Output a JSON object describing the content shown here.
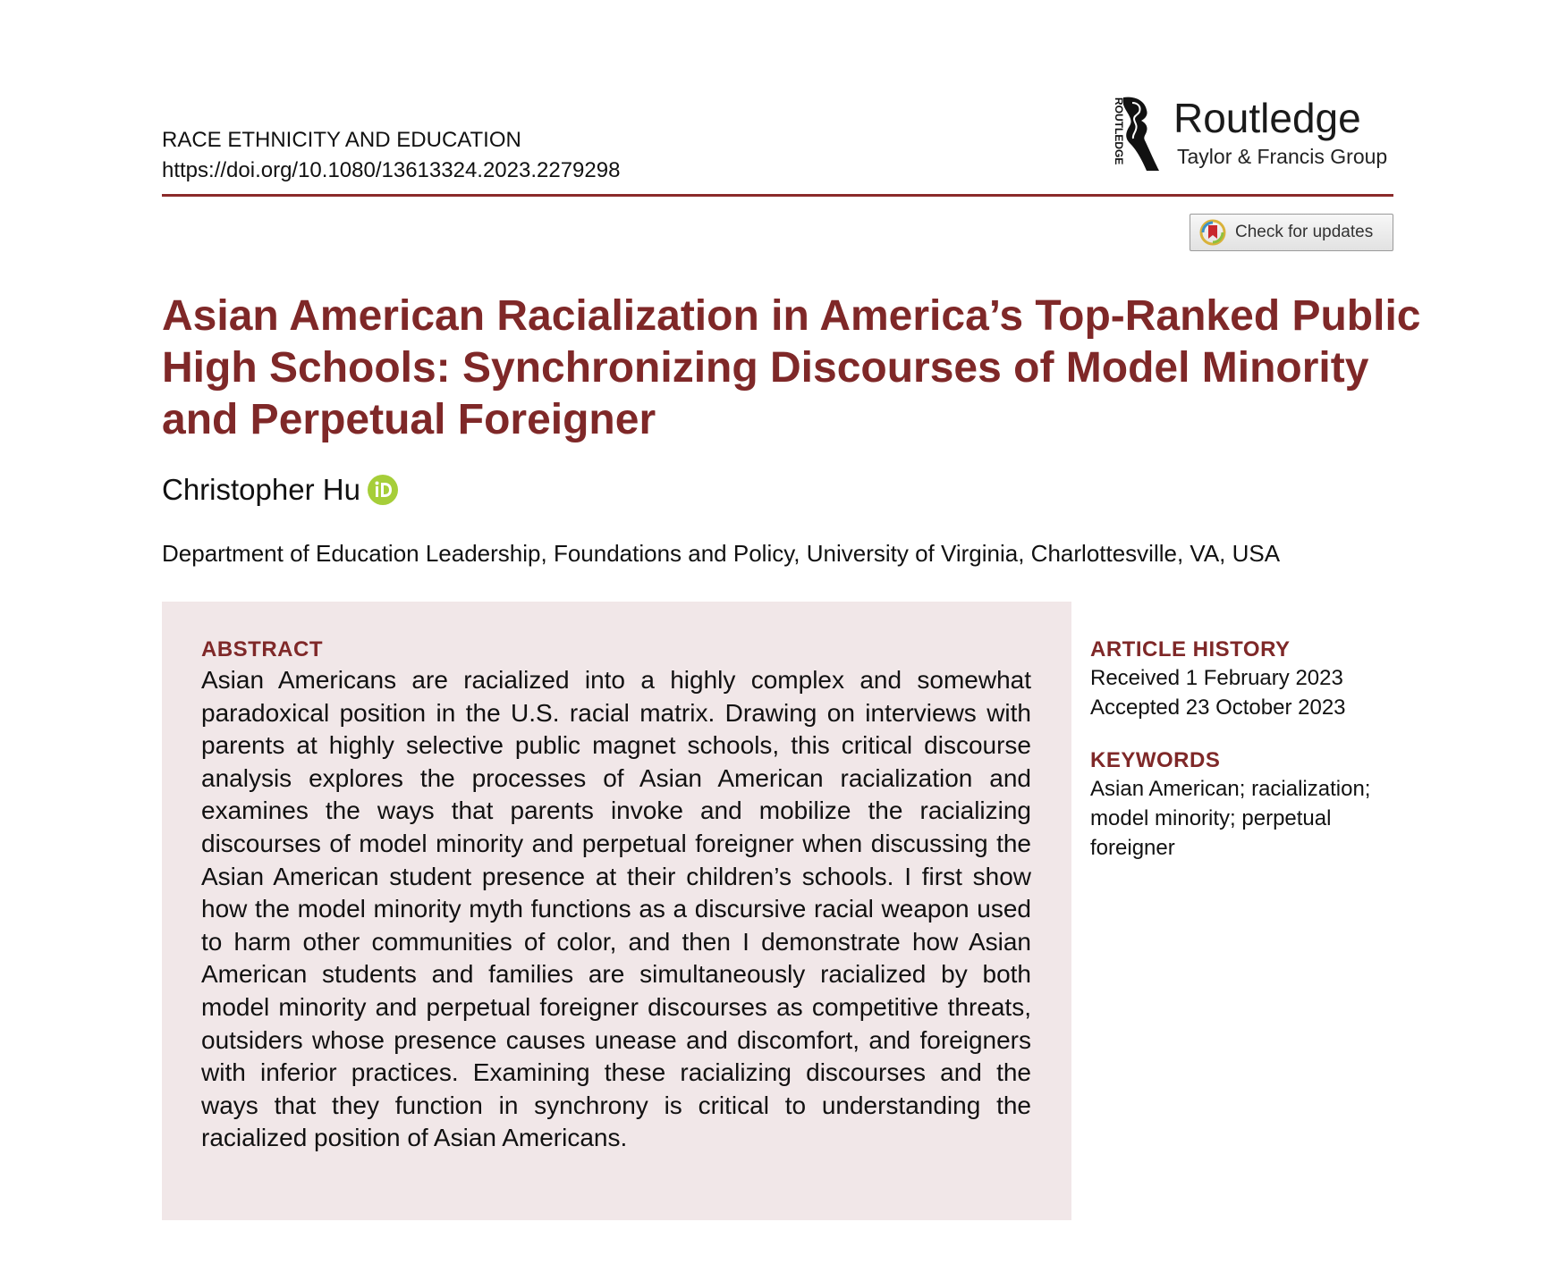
{
  "journal": {
    "name": "RACE ETHNICITY AND EDUCATION",
    "doi": "https://doi.org/10.1080/13613324.2023.2279298"
  },
  "publisher": {
    "name": "Routledge",
    "group": "Taylor & Francis Group",
    "vertical_mark": "ROUTLEDGE",
    "rule_color": "#8b2a2a"
  },
  "check_updates": {
    "label": "Check for updates",
    "icon": "crossmark-icon"
  },
  "article": {
    "title_lines": [
      "Asian American Racialization in America’s Top-Ranked Public",
      "High Schools: Synchronizing Discourses of Model Minority",
      "and Perpetual Foreigner"
    ],
    "title_color": "#7f2828",
    "author": "Christopher Hu",
    "author_icon": "orcid-icon",
    "affiliation": "Department of Education Leadership, Foundations and Policy, University of Virginia, Charlottesville, VA, USA"
  },
  "abstract": {
    "heading": "ABSTRACT",
    "text": "Asian Americans are racialized into a highly complex and somewhat paradoxical position in the U.S. racial matrix. Drawing on interviews with parents at highly selective public magnet schools, this critical discourse analysis explores the processes of Asian American racia­lization and examines the ways that parents invoke and mobilize the racializing discourses of model minority and perpetual for­eigner when discussing the Asian American student presence at their children’s schools. I first show how the model minority myth functions as a discursive racial weapon used to harm other com­munities of color, and then I demonstrate how Asian American students and families are simultaneously racialized by both model minority and perpetual foreigner discourses as competitive threats, outsiders whose presence causes unease and discomfort, and for­eigners with inferior practices. Examining these racializing dis­courses and the ways that they function in synchrony is critical to understanding the racialized position of Asian Americans.",
    "background_color": "#f1e7e8"
  },
  "article_history": {
    "heading": "ARTICLE HISTORY",
    "received": "Received 1 February 2023",
    "accepted": "Accepted 23 October 2023"
  },
  "keywords": {
    "heading": "KEYWORDS",
    "lines": [
      "Asian American; racialization;",
      "model minority; perpetual",
      "foreigner"
    ]
  }
}
